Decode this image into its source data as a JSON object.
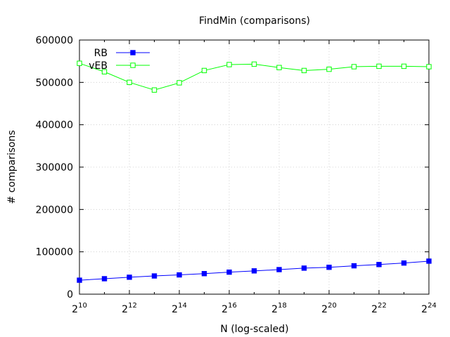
{
  "chart_data": {
    "type": "line",
    "title": "FindMin (comparisons)",
    "xlabel": "N (log-scaled)",
    "ylabel": "# comparisons",
    "x_scale": "log2",
    "x_exponents": [
      10,
      11,
      12,
      13,
      14,
      15,
      16,
      17,
      18,
      19,
      20,
      21,
      22,
      23,
      24
    ],
    "x_tick_exponents": [
      10,
      12,
      14,
      16,
      18,
      20,
      22,
      24
    ],
    "x_tick_base": "2",
    "xlim_exponents": [
      10,
      24
    ],
    "ylim": [
      0,
      600000
    ],
    "y_ticks": [
      0,
      100000,
      200000,
      300000,
      400000,
      500000,
      600000
    ],
    "grid": true,
    "legend_position": "top-left",
    "series": [
      {
        "name": "RB",
        "color": "#0000ff",
        "marker": "filled-square",
        "values": [
          33000,
          36500,
          40000,
          43000,
          45500,
          48500,
          52000,
          55000,
          58000,
          61500,
          63500,
          67000,
          70000,
          73500,
          78000
        ]
      },
      {
        "name": "vEB",
        "color": "#00ff00",
        "marker": "open-square",
        "values": [
          545000,
          525000,
          500000,
          482000,
          499000,
          528000,
          542000,
          543000,
          535000,
          528000,
          531000,
          537000,
          538000,
          538000,
          537000
        ]
      }
    ]
  }
}
